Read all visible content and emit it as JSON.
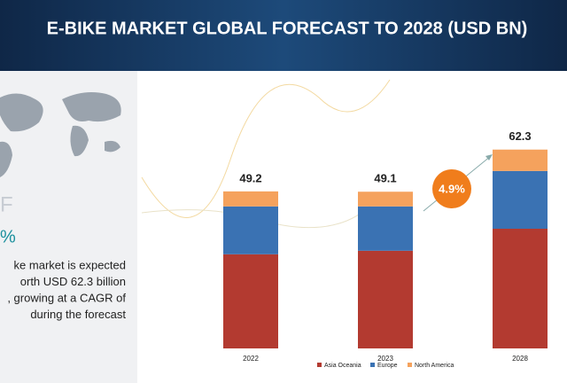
{
  "chart_data": {
    "type": "stacked-bar",
    "title": "E-BIKE MARKET GLOBAL FORECAST TO 2028 (USD BN)",
    "categories": [
      "2022",
      "2023",
      "2028"
    ],
    "series": [
      {
        "name": "Asia Oceania",
        "color": "#b33a30",
        "values": [
          29.5,
          30.6,
          37.5
        ]
      },
      {
        "name": "Europe",
        "color": "#3a72b3",
        "values": [
          15.0,
          13.9,
          18.1
        ]
      },
      {
        "name": "North America",
        "color": "#f5a25d",
        "values": [
          4.7,
          4.6,
          6.7
        ]
      }
    ],
    "totals": [
      49.2,
      49.1,
      62.3
    ],
    "annotation": "4.9%"
  },
  "left_panel": {
    "letter": "F",
    "percent": "%",
    "lines": [
      "ke market is expected",
      "orth USD 62.3 billion",
      ", growing at a CAGR of",
      "during the forecast"
    ]
  }
}
